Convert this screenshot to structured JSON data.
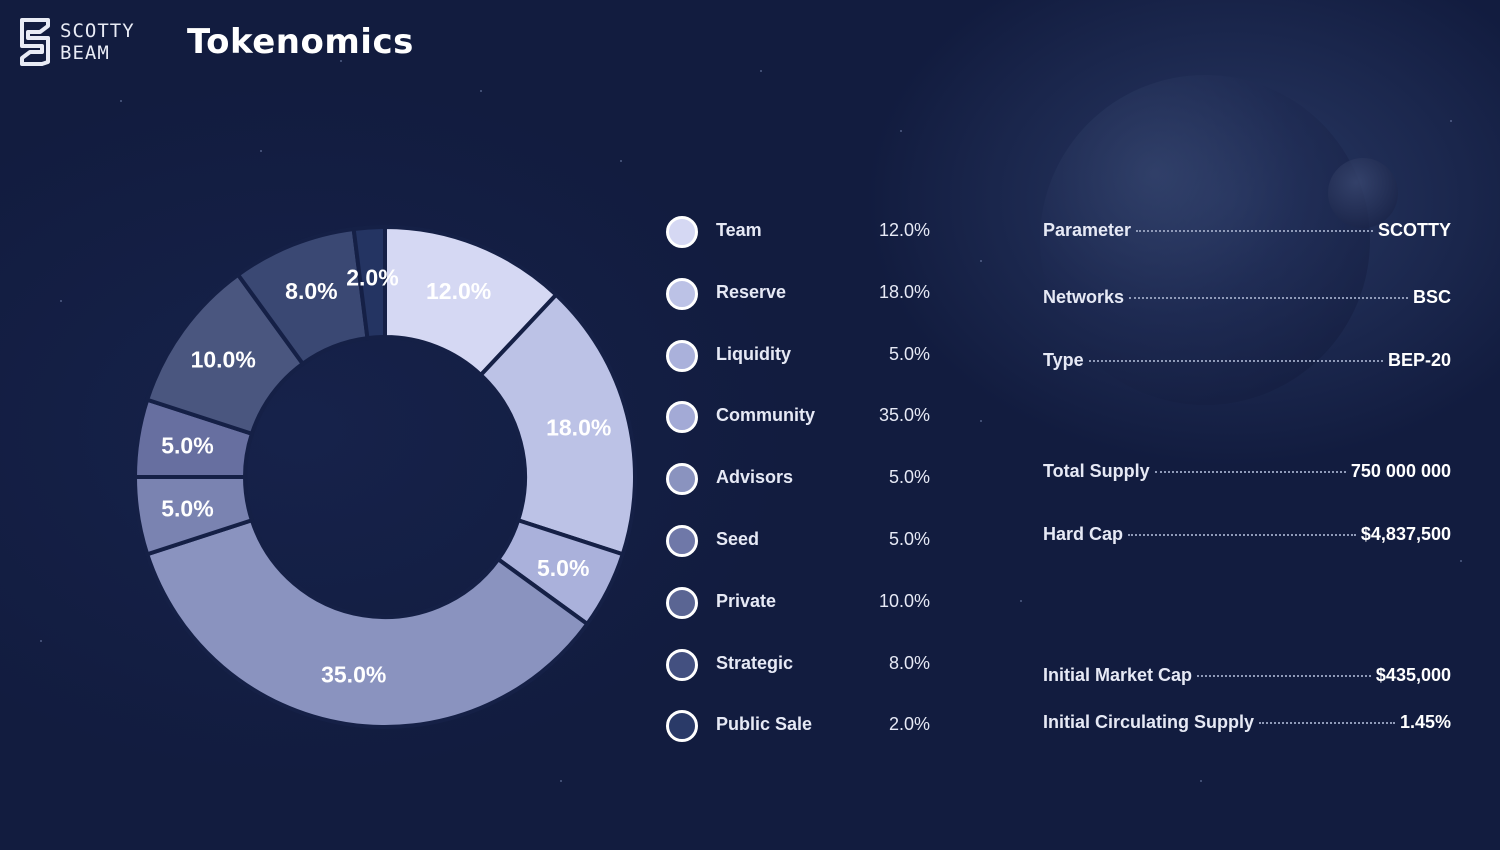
{
  "brand": {
    "line1": "SCOTTY",
    "line2": "BEAM"
  },
  "page_title": "Tokenomics",
  "chart_data": {
    "type": "pie",
    "donut": true,
    "categories": [
      "Team",
      "Reserve",
      "Liquidity",
      "Community",
      "Advisors",
      "Seed",
      "Private",
      "Strategic",
      "Public Sale"
    ],
    "values": [
      12.0,
      18.0,
      5.0,
      35.0,
      5.0,
      5.0,
      10.0,
      8.0,
      2.0
    ],
    "labels": [
      "12.0%",
      "18.0%",
      "5.0%",
      "35.0%",
      "5.0%",
      "5.0%",
      "10.0%",
      "8.0%",
      "2.0%"
    ],
    "colors": [
      "#d5d8f3",
      "#bcc2e6",
      "#aab1db",
      "#8a93bf",
      "#7a83b1",
      "#676fa0",
      "#4a567f",
      "#3a4873",
      "#243462"
    ],
    "legend_position": "right"
  },
  "legend": [
    {
      "name": "Team",
      "value": "12.0%",
      "color": "#d5d8f3"
    },
    {
      "name": "Reserve",
      "value": "18.0%",
      "color": "#bcc2e6"
    },
    {
      "name": "Liquidity",
      "value": "5.0%",
      "color": "#aab1db"
    },
    {
      "name": "Community",
      "value": "35.0%",
      "color": "#a3aad6"
    },
    {
      "name": "Advisors",
      "value": "5.0%",
      "color": "#8a93bf"
    },
    {
      "name": "Seed",
      "value": "5.0%",
      "color": "#6f78a8"
    },
    {
      "name": "Private",
      "value": "10.0%",
      "color": "#5a6593"
    },
    {
      "name": "Strategic",
      "value": "8.0%",
      "color": "#435080"
    },
    {
      "name": "Public Sale",
      "value": "2.0%",
      "color": "#2a3a68"
    }
  ],
  "parameters": [
    {
      "label": "Parameter",
      "value": "SCOTTY"
    },
    {
      "label": "Networks",
      "value": "BSC"
    },
    {
      "label": "Type",
      "value": "BEP-20"
    },
    {
      "label": "Total Supply",
      "value": "750 000 000"
    },
    {
      "label": "Hard Cap",
      "value": "$4,837,500"
    },
    {
      "label": "Initial Market Cap",
      "value": "$435,000"
    },
    {
      "label": "Initial Circulating Supply",
      "value": "1.45%"
    }
  ]
}
